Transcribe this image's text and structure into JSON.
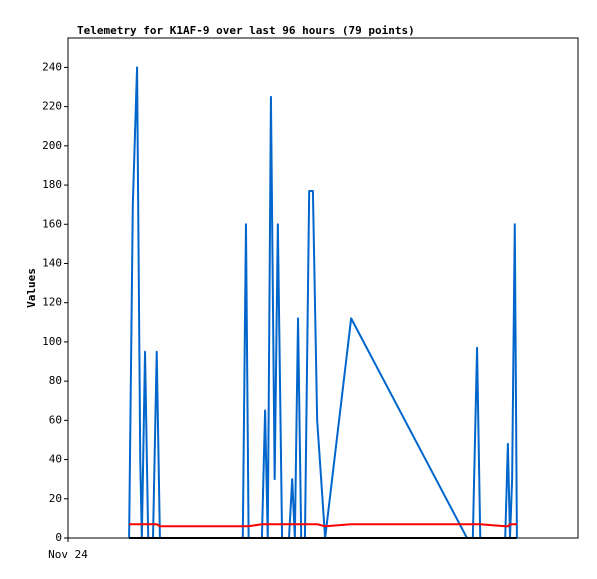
{
  "chart_data": {
    "type": "line",
    "title": "Telemetry for K1AF-9 over last 96 hours (79 points)",
    "ylabel": "Values",
    "x": [
      11.5,
      12.2,
      13.0,
      13.6,
      13.9,
      14.5,
      15.1,
      16.0,
      16.7,
      17.3,
      32.9,
      33.5,
      34.0,
      36.5,
      37.1,
      37.6,
      38.2,
      38.9,
      39.5,
      40.3,
      41.6,
      42.2,
      42.7,
      43.3,
      43.9,
      44.6,
      45.4,
      46.1,
      46.9,
      48.4,
      53.3,
      75.1,
      76.2,
      77.0,
      77.6,
      82.3,
      82.8,
      83.2,
      83.6,
      84.1,
      84.5
    ],
    "series": [
      {
        "color": "#0066cc",
        "values": [
          0,
          170,
          240,
          40,
          0,
          95,
          0,
          0,
          95,
          0,
          0,
          160,
          0,
          0,
          65,
          0,
          225,
          30,
          160,
          0,
          0,
          30,
          0,
          112,
          0,
          0,
          177,
          177,
          60,
          0,
          112,
          0,
          0,
          97,
          0,
          0,
          48,
          0,
          30,
          160,
          0
        ]
      },
      {
        "color": "#ff0000",
        "values": [
          7,
          7,
          7,
          7,
          7,
          7,
          7,
          7,
          7,
          6,
          6,
          6,
          6,
          7,
          7,
          7,
          7,
          7,
          7,
          7,
          7,
          7,
          7,
          7,
          7,
          7,
          7,
          7,
          7,
          6,
          7,
          7,
          7,
          7,
          7,
          6,
          6,
          7,
          7,
          7,
          7
        ]
      },
      {
        "color": "#000000",
        "values": [
          0,
          0,
          0,
          0,
          0,
          0,
          0,
          0,
          0,
          0,
          0,
          0,
          0,
          0,
          0,
          0,
          0,
          0,
          0,
          0,
          0,
          0,
          0,
          0,
          0,
          0,
          0,
          0,
          0,
          0,
          0,
          0,
          0,
          0,
          0,
          0,
          0,
          0,
          0,
          0,
          0
        ]
      }
    ],
    "xlim": [
      0,
      96
    ],
    "xticks": [
      {
        "value": 0,
        "label": "Nov 24"
      }
    ],
    "ylim": [
      0,
      255
    ],
    "yticks": [
      0,
      20,
      40,
      60,
      80,
      100,
      120,
      140,
      160,
      180,
      200,
      220,
      240
    ]
  }
}
